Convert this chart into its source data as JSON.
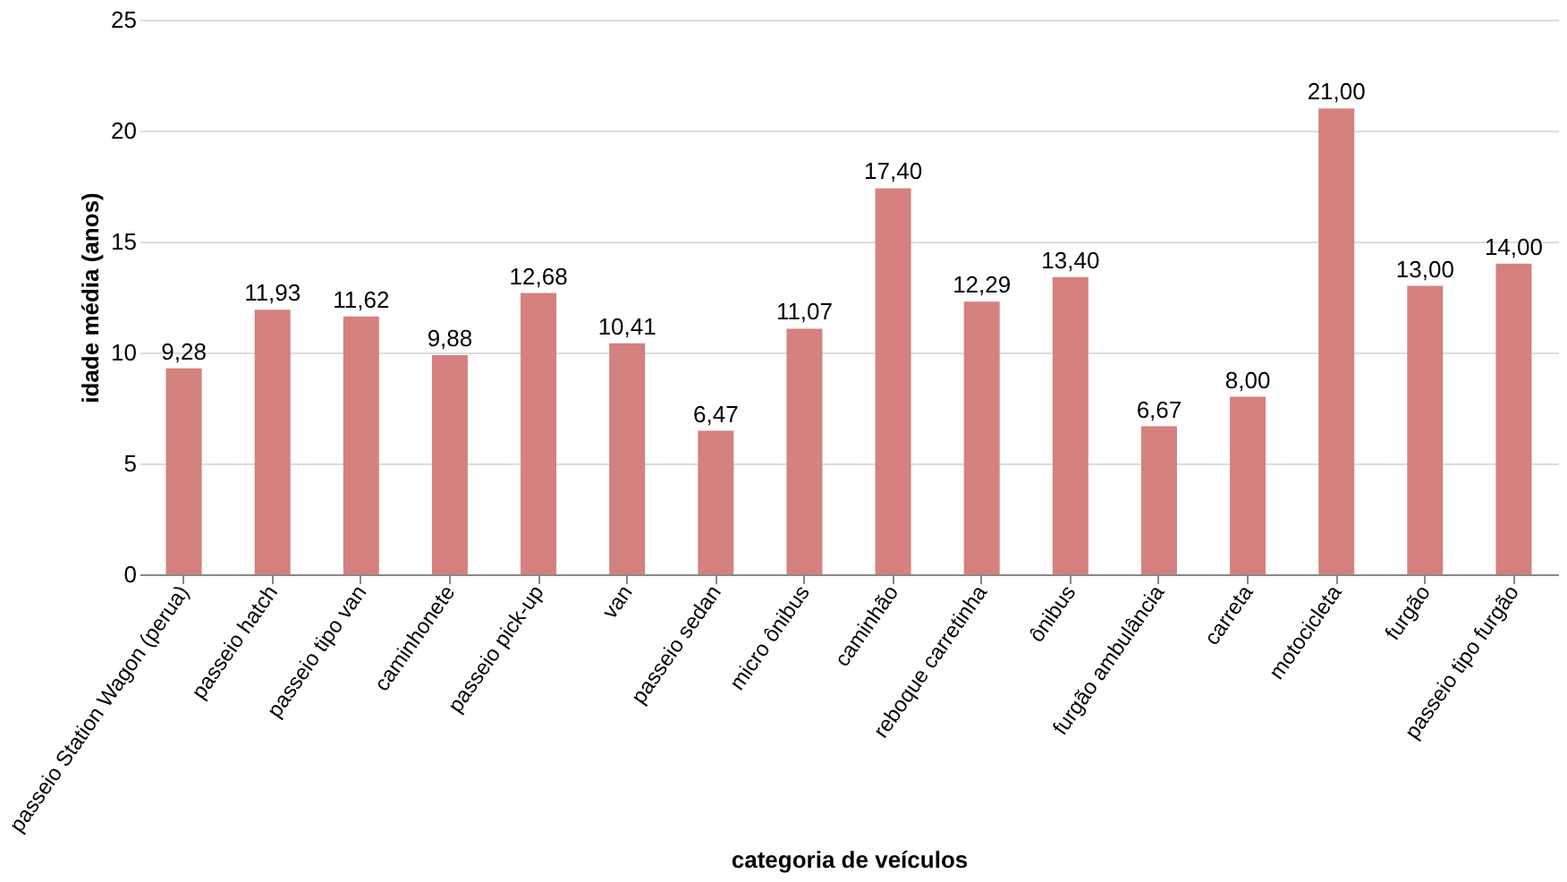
{
  "chart_data": {
    "type": "bar",
    "xlabel": "categoria de veículos",
    "ylabel": "idade média (anos)",
    "categories": [
      "passeio Station Wagon (perua)",
      "passeio hatch",
      "passeio tipo van",
      "caminhonete",
      "passeio pick-up",
      "van",
      "passeio sedan",
      "micro ônibus",
      "caminhão",
      "reboque carretinha",
      "ônibus",
      "furgão ambulância",
      "carreta",
      "motocicleta",
      "furgão",
      "passeio tipo furgão"
    ],
    "values": [
      9.28,
      11.93,
      11.62,
      9.88,
      12.68,
      10.41,
      6.47,
      11.07,
      17.4,
      12.29,
      13.4,
      6.67,
      8.0,
      21.0,
      13.0,
      14.0
    ],
    "value_labels": [
      "9,28",
      "11,93",
      "11,62",
      "9,88",
      "12,68",
      "10,41",
      "6,47",
      "11,07",
      "17,40",
      "12,29",
      "13,40",
      "6,67",
      "8,00",
      "21,00",
      "13,00",
      "14,00"
    ],
    "color": "#d4817f",
    "ylim": [
      0,
      25
    ],
    "yticks": [
      0,
      5,
      10,
      15,
      20,
      25
    ],
    "grid": "y"
  }
}
